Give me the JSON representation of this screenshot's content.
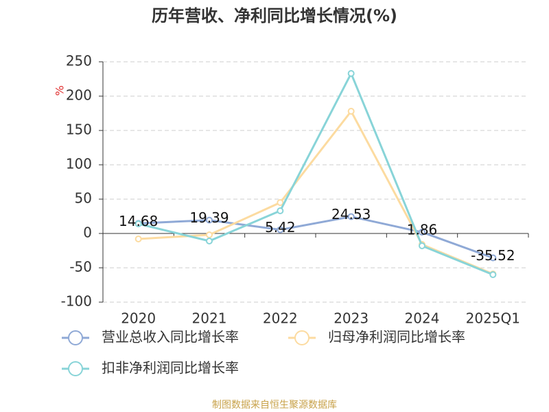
{
  "chart_data": {
    "type": "line",
    "title": "历年营收、净利同比增长情况(%)",
    "y_label": "%",
    "categories": [
      "2020",
      "2021",
      "2022",
      "2023",
      "2024",
      "2025Q1"
    ],
    "series": [
      {
        "name": "营业总收入同比增长率",
        "color": "#8fa9d6",
        "values": [
          14.68,
          19.39,
          5.42,
          24.53,
          1.86,
          -35.52
        ],
        "show_labels": true
      },
      {
        "name": "归母净利润同比增长率",
        "color": "#fcdba0",
        "values": [
          -8,
          -2,
          45,
          178,
          -16,
          -59
        ]
      },
      {
        "name": "扣非净利润同比增长率",
        "color": "#88d4d8",
        "values": [
          14,
          -11,
          33,
          233,
          -18,
          -60
        ]
      }
    ],
    "ylim": [
      -100,
      250
    ],
    "yticks": [
      -100,
      -50,
      0,
      50,
      100,
      150,
      200,
      250
    ],
    "grid": true,
    "source": "制图数据来自恒生聚源数据库"
  }
}
